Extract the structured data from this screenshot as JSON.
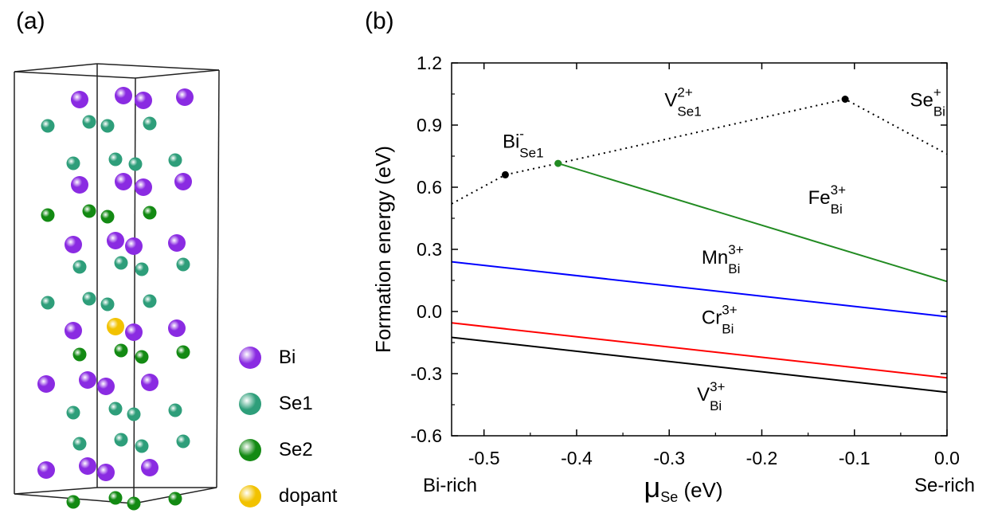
{
  "panels": {
    "a": "(a)",
    "b": "(b)"
  },
  "legend": [
    {
      "label": "Bi",
      "color": "#8a2be2"
    },
    {
      "label": "Se1",
      "color": "#2e9e7a"
    },
    {
      "label": "Se2",
      "color": "#138a13"
    },
    {
      "label": "dopant",
      "color": "#f2c200"
    }
  ],
  "chart_data": {
    "type": "line",
    "xlabel": "μ",
    "xlabel_sub": "Se",
    "xlabel_unit": "(eV)",
    "ylabel": "Formation energy (eV)",
    "xlim": [
      -0.535,
      0.0
    ],
    "ylim": [
      -0.6,
      1.2
    ],
    "xticks": [
      -0.5,
      -0.4,
      -0.3,
      -0.2,
      -0.1,
      0.0
    ],
    "xtick_labels": [
      "-0.5",
      "-0.4",
      "-0.3",
      "-0.2",
      "-0.1",
      "0.0"
    ],
    "yticks": [
      -0.6,
      -0.3,
      0.0,
      0.3,
      0.6,
      0.9,
      1.2
    ],
    "ytick_labels": [
      "-0.6",
      "-0.3",
      "0.0",
      "0.3",
      "0.6",
      "0.9",
      "1.2"
    ],
    "x_end_labels": {
      "left": "Bi-rich",
      "right": "Se-rich"
    },
    "series": [
      {
        "name": "V_Bi^3+",
        "color": "#000000",
        "style": "solid",
        "x": [
          -0.535,
          0.0
        ],
        "y": [
          -0.125,
          -0.39
        ]
      },
      {
        "name": "Cr_Bi^3+",
        "color": "#ff0000",
        "style": "solid",
        "x": [
          -0.535,
          0.0
        ],
        "y": [
          -0.055,
          -0.32
        ]
      },
      {
        "name": "Mn_Bi^3+",
        "color": "#0000ff",
        "style": "solid",
        "x": [
          -0.535,
          0.0
        ],
        "y": [
          0.24,
          -0.025
        ]
      },
      {
        "name": "Fe_Bi^3+",
        "color": "#228b22",
        "style": "solid",
        "x": [
          -0.42,
          0.0
        ],
        "y": [
          0.715,
          0.145
        ]
      },
      {
        "name": "native defects",
        "color": "#000000",
        "style": "dotted",
        "x": [
          -0.535,
          -0.477,
          -0.42,
          -0.11,
          0.0
        ],
        "y": [
          0.52,
          0.66,
          0.715,
          1.025,
          0.76
        ]
      }
    ],
    "markers": [
      {
        "x": -0.477,
        "y": 0.66,
        "color": "#000000"
      },
      {
        "x": -0.42,
        "y": 0.715,
        "color": "#228b22"
      },
      {
        "x": -0.11,
        "y": 1.025,
        "color": "#000000"
      }
    ],
    "annotations": [
      {
        "base": "V",
        "sup": "2+",
        "sub": "Se1",
        "x": -0.305,
        "y": 0.99
      },
      {
        "base": "Se",
        "sup": "+",
        "sub": "Bi",
        "x": -0.04,
        "y": 0.99
      },
      {
        "base": "Bi",
        "sup": "-",
        "sub": "Se1",
        "x": -0.48,
        "y": 0.79
      },
      {
        "base": "Fe",
        "sup": "3+",
        "sub": "Bi",
        "x": -0.15,
        "y": 0.52
      },
      {
        "base": "Mn",
        "sup": "3+",
        "sub": "Bi",
        "x": -0.265,
        "y": 0.23
      },
      {
        "base": "Cr",
        "sup": "3+",
        "sub": "Bi",
        "x": -0.265,
        "y": -0.06
      },
      {
        "base": "V",
        "sup": "3+",
        "sub": "Bi",
        "x": -0.27,
        "y": -0.43
      }
    ]
  }
}
